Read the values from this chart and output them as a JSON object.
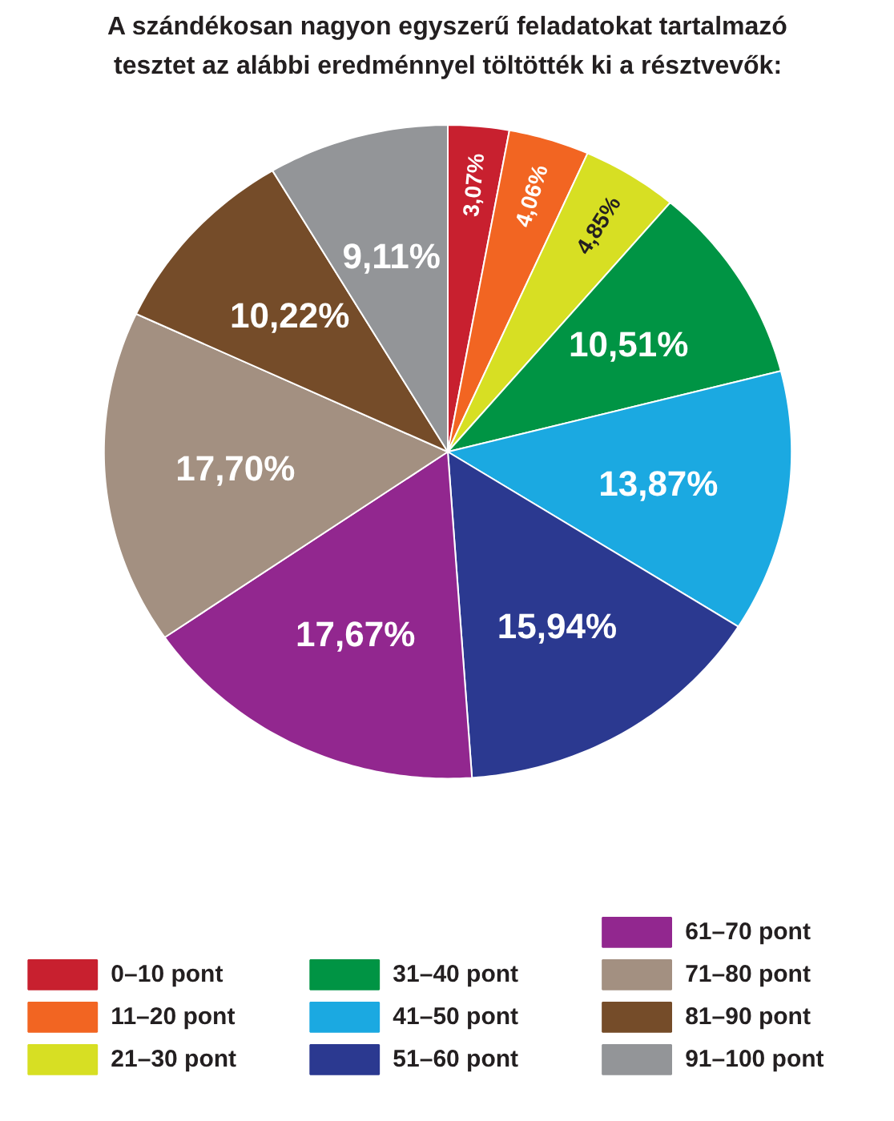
{
  "chart_data": {
    "type": "pie",
    "title": "A szándékosan nagyon egyszerű feladatokat tartalmazó\ntesztet az alábbi eredménnyel töltötték ki a résztvevők:",
    "categories": [
      "0–10 pont",
      "11–20 pont",
      "21–30 pont",
      "31–40 pont",
      "41–50 pont",
      "51–60 pont",
      "61–70 pont",
      "71–80 pont",
      "81–90 pont",
      "91–100 pont"
    ],
    "values": [
      3.07,
      4.06,
      4.85,
      10.51,
      13.87,
      15.94,
      17.67,
      17.7,
      10.22,
      9.11
    ],
    "value_labels": [
      "3,07%",
      "4,06%",
      "4,85%",
      "10,51%",
      "13,87%",
      "15,94%",
      "17,67%",
      "17,70%",
      "10,22%",
      "9,11%"
    ],
    "colors": [
      "#c8202f",
      "#f26522",
      "#d7df23",
      "#009444",
      "#1ba9e1",
      "#2b3990",
      "#92278f",
      "#a39081",
      "#754c29",
      "#939598"
    ],
    "legend": "bottom"
  }
}
